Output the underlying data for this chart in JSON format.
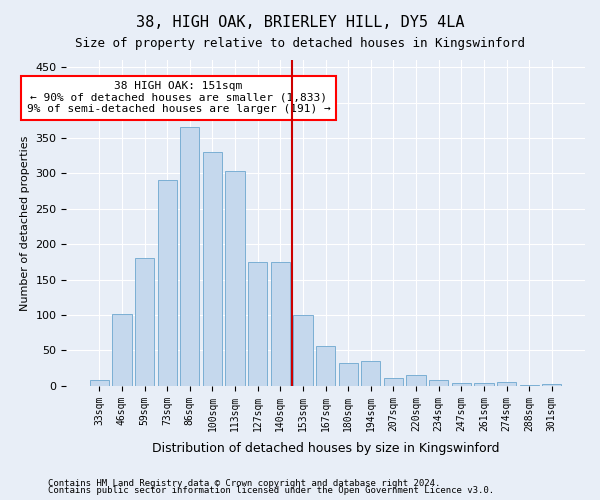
{
  "title": "38, HIGH OAK, BRIERLEY HILL, DY5 4LA",
  "subtitle": "Size of property relative to detached houses in Kingswinford",
  "xlabel": "Distribution of detached houses by size in Kingswinford",
  "ylabel": "Number of detached properties",
  "footer1": "Contains HM Land Registry data © Crown copyright and database right 2024.",
  "footer2": "Contains public sector information licensed under the Open Government Licence v3.0.",
  "annotation_title": "38 HIGH OAK: 151sqm",
  "annotation_line1": "← 90% of detached houses are smaller (1,833)",
  "annotation_line2": "9% of semi-detached houses are larger (191) →",
  "marker_value": 151,
  "categories": [
    "33sqm",
    "46sqm",
    "59sqm",
    "73sqm",
    "86sqm",
    "100sqm",
    "113sqm",
    "127sqm",
    "140sqm",
    "153sqm",
    "167sqm",
    "180sqm",
    "194sqm",
    "207sqm",
    "220sqm",
    "234sqm",
    "247sqm",
    "261sqm",
    "274sqm",
    "288sqm",
    "301sqm"
  ],
  "values": [
    8,
    101,
    180,
    290,
    365,
    330,
    303,
    175,
    175,
    100,
    57,
    33,
    35,
    11,
    16,
    9,
    4,
    4,
    5,
    1,
    3
  ],
  "bar_color": "#c5d8ed",
  "bar_edge_color": "#7bafd4",
  "marker_color": "#cc0000",
  "background_color": "#e8eef7",
  "grid_color": "#ffffff",
  "ylim": [
    0,
    460
  ],
  "yticks": [
    0,
    50,
    100,
    150,
    200,
    250,
    300,
    350,
    400,
    450
  ]
}
